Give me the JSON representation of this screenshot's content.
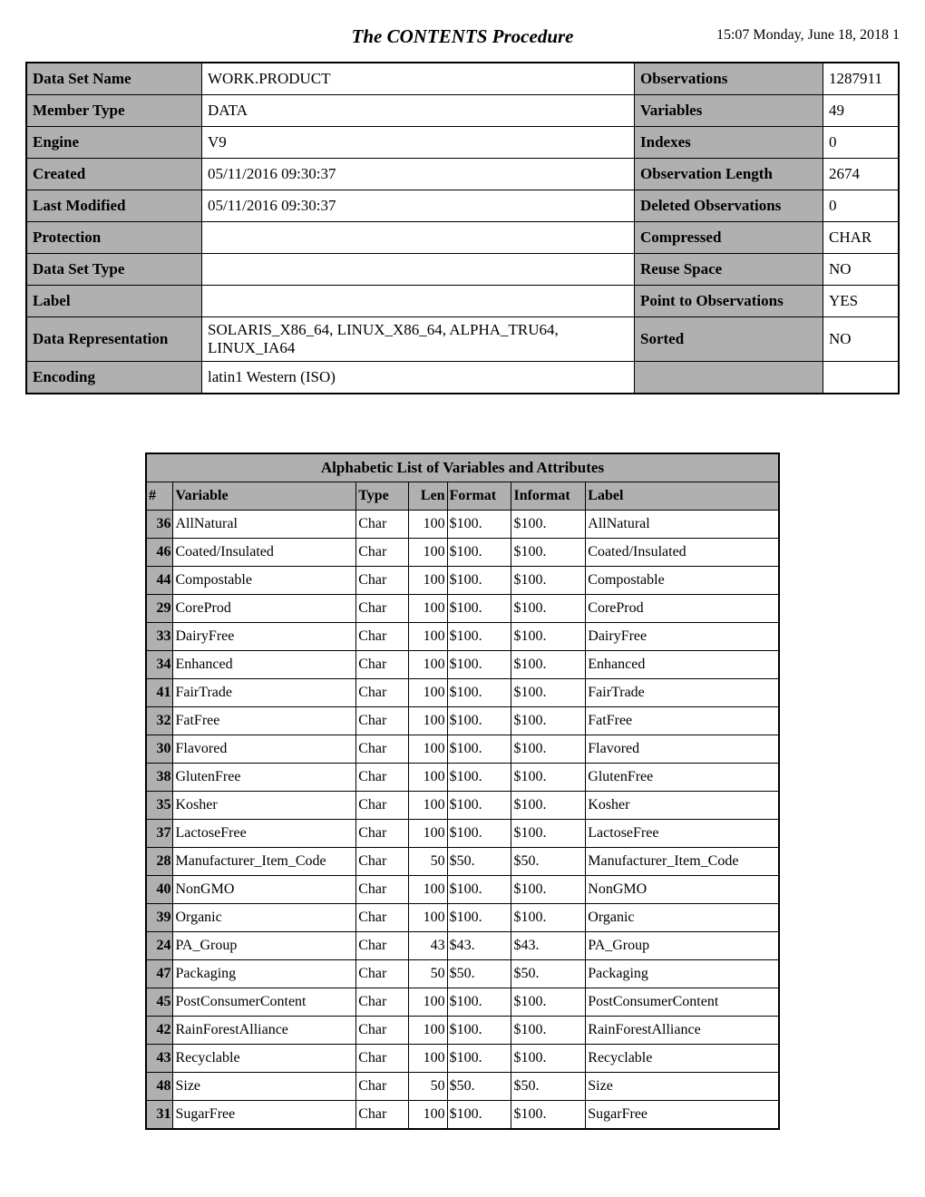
{
  "header": {
    "title": "The CONTENTS Procedure",
    "timestamp": "15:07  Monday, June 18, 2018  1"
  },
  "meta_rows": [
    {
      "k1": "Data Set Name",
      "v1": "WORK.PRODUCT",
      "k2": "Observations",
      "v2": "1287911"
    },
    {
      "k1": "Member Type",
      "v1": "DATA",
      "k2": "Variables",
      "v2": "49"
    },
    {
      "k1": "Engine",
      "v1": "V9",
      "k2": "Indexes",
      "v2": "0"
    },
    {
      "k1": "Created",
      "v1": "05/11/2016 09:30:37",
      "k2": "Observation Length",
      "v2": "2674"
    },
    {
      "k1": "Last Modified",
      "v1": "05/11/2016 09:30:37",
      "k2": "Deleted Observations",
      "v2": "0"
    },
    {
      "k1": "Protection",
      "v1": "",
      "k2": "Compressed",
      "v2": "CHAR"
    },
    {
      "k1": "Data Set Type",
      "v1": "",
      "k2": "Reuse Space",
      "v2": "NO"
    },
    {
      "k1": "Label",
      "v1": "",
      "k2": "Point to Observations",
      "v2": "YES"
    },
    {
      "k1": "Data Representation",
      "v1": "SOLARIS_X86_64, LINUX_X86_64, ALPHA_TRU64, LINUX_IA64",
      "k2": "Sorted",
      "v2": "NO"
    },
    {
      "k1": "Encoding",
      "v1": "latin1  Western (ISO)",
      "k2": "",
      "v2": ""
    }
  ],
  "vars_table": {
    "title": "Alphabetic List of Variables and Attributes",
    "columns": [
      "#",
      "Variable",
      "Type",
      "Len",
      "Format",
      "Informat",
      "Label"
    ],
    "rows": [
      {
        "num": "36",
        "variable": "AllNatural",
        "type": "Char",
        "len": "100",
        "format": "$100.",
        "informat": "$100.",
        "label": "AllNatural"
      },
      {
        "num": "46",
        "variable": "Coated/Insulated",
        "type": "Char",
        "len": "100",
        "format": "$100.",
        "informat": "$100.",
        "label": "Coated/Insulated"
      },
      {
        "num": "44",
        "variable": "Compostable",
        "type": "Char",
        "len": "100",
        "format": "$100.",
        "informat": "$100.",
        "label": "Compostable"
      },
      {
        "num": "29",
        "variable": "CoreProd",
        "type": "Char",
        "len": "100",
        "format": "$100.",
        "informat": "$100.",
        "label": "CoreProd"
      },
      {
        "num": "33",
        "variable": "DairyFree",
        "type": "Char",
        "len": "100",
        "format": "$100.",
        "informat": "$100.",
        "label": "DairyFree"
      },
      {
        "num": "34",
        "variable": "Enhanced",
        "type": "Char",
        "len": "100",
        "format": "$100.",
        "informat": "$100.",
        "label": "Enhanced"
      },
      {
        "num": "41",
        "variable": "FairTrade",
        "type": "Char",
        "len": "100",
        "format": "$100.",
        "informat": "$100.",
        "label": "FairTrade"
      },
      {
        "num": "32",
        "variable": "FatFree",
        "type": "Char",
        "len": "100",
        "format": "$100.",
        "informat": "$100.",
        "label": "FatFree"
      },
      {
        "num": "30",
        "variable": "Flavored",
        "type": "Char",
        "len": "100",
        "format": "$100.",
        "informat": "$100.",
        "label": "Flavored"
      },
      {
        "num": "38",
        "variable": "GlutenFree",
        "type": "Char",
        "len": "100",
        "format": "$100.",
        "informat": "$100.",
        "label": "GlutenFree"
      },
      {
        "num": "35",
        "variable": "Kosher",
        "type": "Char",
        "len": "100",
        "format": "$100.",
        "informat": "$100.",
        "label": "Kosher"
      },
      {
        "num": "37",
        "variable": "LactoseFree",
        "type": "Char",
        "len": "100",
        "format": "$100.",
        "informat": "$100.",
        "label": "LactoseFree"
      },
      {
        "num": "28",
        "variable": "Manufacturer_Item_Code",
        "type": "Char",
        "len": "50",
        "format": "$50.",
        "informat": "$50.",
        "label": "Manufacturer_Item_Code"
      },
      {
        "num": "40",
        "variable": "NonGMO",
        "type": "Char",
        "len": "100",
        "format": "$100.",
        "informat": "$100.",
        "label": "NonGMO"
      },
      {
        "num": "39",
        "variable": "Organic",
        "type": "Char",
        "len": "100",
        "format": "$100.",
        "informat": "$100.",
        "label": "Organic"
      },
      {
        "num": "24",
        "variable": "PA_Group",
        "type": "Char",
        "len": "43",
        "format": "$43.",
        "informat": "$43.",
        "label": "PA_Group"
      },
      {
        "num": "47",
        "variable": "Packaging",
        "type": "Char",
        "len": "50",
        "format": "$50.",
        "informat": "$50.",
        "label": "Packaging"
      },
      {
        "num": "45",
        "variable": "PostConsumerContent",
        "type": "Char",
        "len": "100",
        "format": "$100.",
        "informat": "$100.",
        "label": "PostConsumerContent"
      },
      {
        "num": "42",
        "variable": "RainForestAlliance",
        "type": "Char",
        "len": "100",
        "format": "$100.",
        "informat": "$100.",
        "label": "RainForestAlliance"
      },
      {
        "num": "43",
        "variable": "Recyclable",
        "type": "Char",
        "len": "100",
        "format": "$100.",
        "informat": "$100.",
        "label": "Recyclable"
      },
      {
        "num": "48",
        "variable": "Size",
        "type": "Char",
        "len": "50",
        "format": "$50.",
        "informat": "$50.",
        "label": "Size"
      },
      {
        "num": "31",
        "variable": "SugarFree",
        "type": "Char",
        "len": "100",
        "format": "$100.",
        "informat": "$100.",
        "label": "SugarFree"
      }
    ]
  }
}
